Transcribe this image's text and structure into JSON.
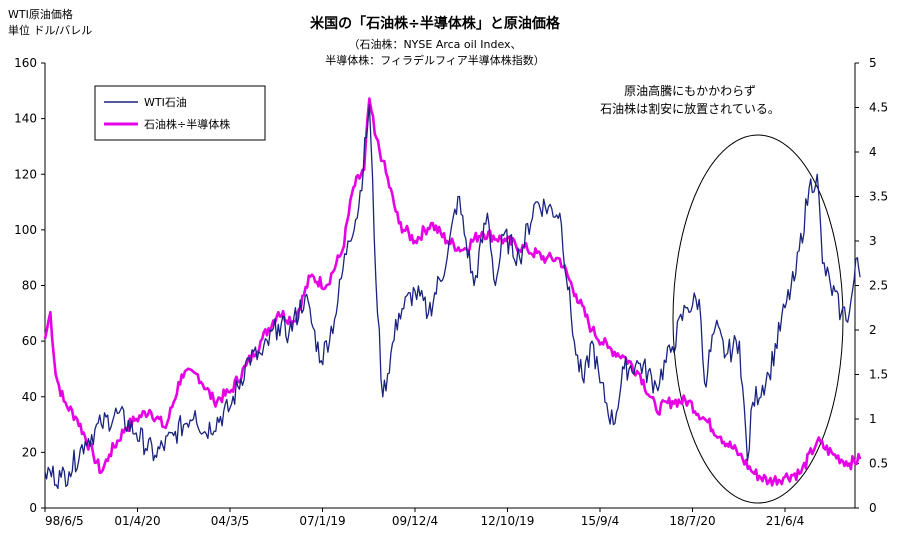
{
  "chart_data": {
    "type": "line",
    "title": "米国の「石油株÷半導体株」と原油価格",
    "subtitle_line1": "（石油株：NYSE Arca oil Index、",
    "subtitle_line2": "半導体株：フィラデルフィア半導体株指数）",
    "left_axis_label_line1": "WTI原油価格",
    "left_axis_label_line2": "単位 ドル/バレル",
    "annotation_line1": "原油高騰にもかかわらず",
    "annotation_line2": "石油株は割安に放置されている。",
    "x_tick_labels": [
      "98/6/5",
      "01/4/20",
      "04/3/5",
      "07/1/19",
      "09/12/4",
      "12/10/19",
      "15/9/4",
      "18/7/20",
      "21/6/4"
    ],
    "y_left": {
      "min": 0,
      "max": 160,
      "ticks": [
        "0",
        "20",
        "40",
        "60",
        "80",
        "100",
        "120",
        "140",
        "160"
      ]
    },
    "y_right": {
      "min": 0,
      "max": 5,
      "ticks": [
        "0",
        "0.5",
        "1",
        "1.5",
        "2",
        "2.5",
        "3",
        "3.5",
        "4",
        "4.5",
        "5"
      ]
    },
    "grid": false,
    "legend_position": "top-left",
    "series": [
      {
        "name": "WTI石油",
        "axis": "left",
        "color": "#1a237e",
        "points": [
          [
            "1998-06",
            13
          ],
          [
            "1998-12",
            11
          ],
          [
            "1999-03",
            13
          ],
          [
            "1999-09",
            24
          ],
          [
            "2000-03",
            30
          ],
          [
            "2000-09",
            34
          ],
          [
            "2001-04",
            27
          ],
          [
            "2001-11",
            19
          ],
          [
            "2002-06",
            26
          ],
          [
            "2003-02",
            35
          ],
          [
            "2003-05",
            27
          ],
          [
            "2004-03",
            36
          ],
          [
            "2004-10",
            54
          ],
          [
            "2005-03",
            55
          ],
          [
            "2005-09",
            66
          ],
          [
            "2006-01",
            63
          ],
          [
            "2006-07",
            76
          ],
          [
            "2007-01",
            53
          ],
          [
            "2007-06",
            68
          ],
          [
            "2007-11",
            96
          ],
          [
            "2008-03",
            108
          ],
          [
            "2008-07",
            145
          ],
          [
            "2008-10",
            70
          ],
          [
            "2008-12",
            40
          ],
          [
            "2009-06",
            70
          ],
          [
            "2009-12",
            78
          ],
          [
            "2010-05",
            70
          ],
          [
            "2010-12",
            90
          ],
          [
            "2011-04",
            112
          ],
          [
            "2011-10",
            80
          ],
          [
            "2012-03",
            106
          ],
          [
            "2012-06",
            80
          ],
          [
            "2012-09",
            98
          ],
          [
            "2013-03",
            90
          ],
          [
            "2013-09",
            110
          ],
          [
            "2014-06",
            106
          ],
          [
            "2014-12",
            55
          ],
          [
            "2015-03",
            45
          ],
          [
            "2015-06",
            60
          ],
          [
            "2015-09",
            45
          ],
          [
            "2016-02",
            30
          ],
          [
            "2016-06",
            50
          ],
          [
            "2016-12",
            52
          ],
          [
            "2017-06",
            44
          ],
          [
            "2017-12",
            58
          ],
          [
            "2018-05",
            72
          ],
          [
            "2018-10",
            75
          ],
          [
            "2018-12",
            45
          ],
          [
            "2019-04",
            65
          ],
          [
            "2019-08",
            55
          ],
          [
            "2020-01",
            60
          ],
          [
            "2020-04",
            17
          ],
          [
            "2020-06",
            38
          ],
          [
            "2020-12",
            48
          ],
          [
            "2021-06",
            72
          ],
          [
            "2021-10",
            84
          ],
          [
            "2022-03",
            115
          ],
          [
            "2022-06",
            120
          ],
          [
            "2022-08",
            88
          ],
          [
            "2022-11",
            80
          ],
          [
            "2023-03",
            70
          ],
          [
            "2023-06",
            70
          ],
          [
            "2023-09",
            90
          ],
          [
            "2023-10",
            83
          ]
        ]
      },
      {
        "name": "石油株÷半導体株",
        "axis": "right",
        "color": "#e600e6",
        "points": [
          [
            "1998-06",
            1.9
          ],
          [
            "1998-08",
            2.2
          ],
          [
            "1998-10",
            1.5
          ],
          [
            "1999-01",
            1.2
          ],
          [
            "1999-06",
            1.0
          ],
          [
            "1999-12",
            0.6
          ],
          [
            "2000-03",
            0.4
          ],
          [
            "2000-06",
            0.6
          ],
          [
            "2000-12",
            0.9
          ],
          [
            "2001-04",
            1.0
          ],
          [
            "2001-09",
            1.1
          ],
          [
            "2002-03",
            0.9
          ],
          [
            "2002-09",
            1.5
          ],
          [
            "2003-03",
            1.5
          ],
          [
            "2003-09",
            1.2
          ],
          [
            "2004-03",
            1.3
          ],
          [
            "2004-09",
            1.6
          ],
          [
            "2005-03",
            1.9
          ],
          [
            "2005-09",
            2.2
          ],
          [
            "2006-03",
            2.1
          ],
          [
            "2006-09",
            2.6
          ],
          [
            "2007-03",
            2.5
          ],
          [
            "2007-09",
            2.9
          ],
          [
            "2008-01",
            3.6
          ],
          [
            "2008-05",
            3.8
          ],
          [
            "2008-07",
            4.6
          ],
          [
            "2008-09",
            4.2
          ],
          [
            "2008-12",
            3.9
          ],
          [
            "2009-06",
            3.2
          ],
          [
            "2009-12",
            3.0
          ],
          [
            "2010-06",
            3.2
          ],
          [
            "2010-12",
            3.0
          ],
          [
            "2011-06",
            2.9
          ],
          [
            "2012-01",
            3.1
          ],
          [
            "2012-10",
            3.0
          ],
          [
            "2013-06",
            2.9
          ],
          [
            "2014-01",
            2.8
          ],
          [
            "2014-06",
            2.8
          ],
          [
            "2014-12",
            2.4
          ],
          [
            "2015-06",
            2.0
          ],
          [
            "2015-12",
            1.8
          ],
          [
            "2016-06",
            1.7
          ],
          [
            "2016-12",
            1.5
          ],
          [
            "2017-06",
            1.1
          ],
          [
            "2017-12",
            1.2
          ],
          [
            "2018-06",
            1.2
          ],
          [
            "2018-12",
            1.0
          ],
          [
            "2019-06",
            0.8
          ],
          [
            "2020-01",
            0.6
          ],
          [
            "2020-06",
            0.4
          ],
          [
            "2020-12",
            0.3
          ],
          [
            "2021-06",
            0.35
          ],
          [
            "2021-12",
            0.4
          ],
          [
            "2022-06",
            0.75
          ],
          [
            "2022-12",
            0.6
          ],
          [
            "2023-06",
            0.5
          ],
          [
            "2023-10",
            0.55
          ]
        ]
      }
    ]
  }
}
